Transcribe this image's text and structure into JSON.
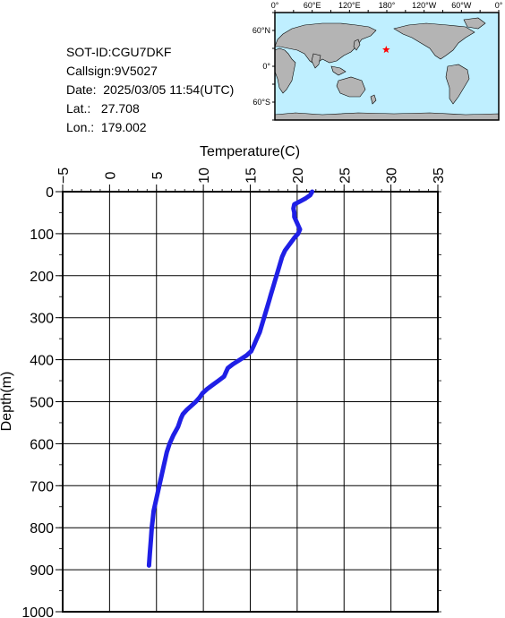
{
  "info": {
    "sot_id": "SOT-ID:CGU7DKF",
    "callsign": "Callsign:9V5027",
    "date_label": "Date:",
    "date_value": "2025/03/05 11:54(UTC)",
    "lat_label": "Lat.:",
    "lat_value": "27.708",
    "lon_label": "Lon.:",
    "lon_value": "179.002"
  },
  "map": {
    "top_labels": [
      "0°",
      "60°E",
      "120°E",
      "180°",
      "120°W",
      "60°W",
      "0°"
    ],
    "left_labels": [
      "60°N",
      "0°",
      "60°S"
    ],
    "ocean_color": "#bfefff",
    "land_color": "#b4b4b4",
    "marker_color": "#ff0000",
    "marker_lat": 27.708,
    "marker_lon": 179.002
  },
  "chart_data": {
    "type": "line",
    "title": "",
    "xlabel": "Temperature(C)",
    "ylabel": "Depth(m)",
    "xlim": [
      -5,
      35
    ],
    "ylim": [
      0,
      1000
    ],
    "x_ticks": [
      "-5",
      "0",
      "5",
      "10",
      "15",
      "20",
      "25",
      "30",
      "35"
    ],
    "y_ticks": [
      "0",
      "100",
      "200",
      "300",
      "400",
      "500",
      "600",
      "700",
      "800",
      "900",
      "1000"
    ],
    "grid": true,
    "line_color": "#1f1fe6",
    "series": [
      {
        "x": [
          21.6,
          21.4,
          20.9,
          20.4,
          19.7,
          19.6,
          19.7,
          19.7,
          19.9,
          20.1,
          20.3,
          20.1,
          19.7,
          19.2,
          18.7,
          18.4,
          18.2,
          18.0,
          17.8,
          17.6,
          17.4,
          17.2,
          17.0,
          16.8,
          16.6,
          16.4,
          16.2,
          16.0,
          15.7,
          15.4,
          15.1,
          14.6,
          13.9,
          13.2,
          12.6,
          12.4,
          12.2,
          11.6,
          11.0,
          10.4,
          9.9,
          9.6,
          9.2,
          8.7,
          8.2,
          7.8,
          7.6,
          7.3,
          6.8,
          6.4,
          6.1,
          5.9,
          5.7,
          5.5,
          5.3,
          5.1,
          4.9,
          4.7,
          4.6,
          4.5,
          4.4,
          4.3,
          4.2
        ],
        "y": [
          0,
          8,
          16,
          22,
          30,
          40,
          50,
          60,
          70,
          80,
          90,
          100,
          110,
          125,
          140,
          155,
          170,
          185,
          200,
          215,
          230,
          245,
          260,
          275,
          290,
          305,
          320,
          335,
          350,
          365,
          380,
          390,
          400,
          410,
          420,
          430,
          440,
          450,
          460,
          470,
          480,
          490,
          500,
          510,
          520,
          530,
          540,
          560,
          580,
          600,
          620,
          640,
          660,
          680,
          700,
          720,
          740,
          760,
          780,
          800,
          830,
          860,
          890
        ]
      }
    ]
  }
}
